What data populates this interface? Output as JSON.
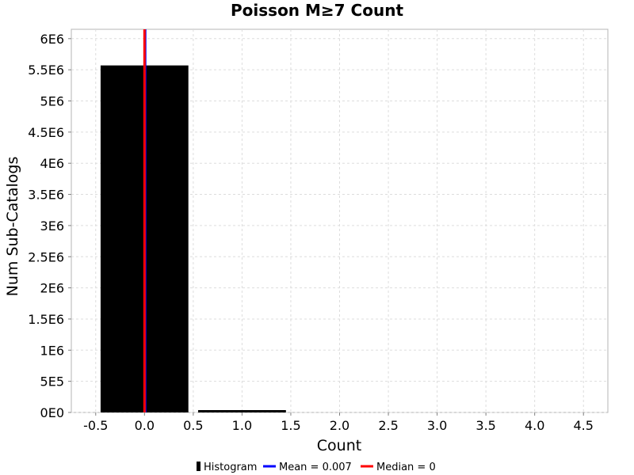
{
  "chart_data": {
    "type": "bar",
    "title": "Poisson M≥7 Count",
    "xlabel": "Count",
    "ylabel": "Num Sub-Catalogs",
    "xlim": [
      -0.75,
      4.75
    ],
    "ylim": [
      0,
      6150000
    ],
    "x_ticks": [
      -0.5,
      0.0,
      0.5,
      1.0,
      1.5,
      2.0,
      2.5,
      3.0,
      3.5,
      4.0,
      4.5
    ],
    "x_tick_labels": [
      "-0.5",
      "0.0",
      "0.5",
      "1.0",
      "1.5",
      "2.0",
      "2.5",
      "3.0",
      "3.5",
      "4.0",
      "4.5"
    ],
    "y_ticks": [
      0,
      500000,
      1000000,
      1500000,
      2000000,
      2500000,
      3000000,
      3500000,
      4000000,
      4500000,
      5000000,
      5500000,
      6000000
    ],
    "y_tick_labels": [
      "0E0",
      "5E5",
      "1E6",
      "1.5E6",
      "2E6",
      "2.5E6",
      "3E6",
      "3.5E6",
      "4E6",
      "4.5E6",
      "5E6",
      "5.5E6",
      "6E6"
    ],
    "bin_width": 0.9,
    "series": [
      {
        "name": "Histogram",
        "color": "#000000",
        "x": [
          0,
          1
        ],
        "values": [
          5570000,
          38000
        ]
      }
    ],
    "lines": [
      {
        "name": "Mean = 0.007",
        "x": 0.007,
        "color": "#0000ff"
      },
      {
        "name": "Median = 0",
        "x": 0,
        "color": "#ff0000"
      }
    ],
    "grid": true,
    "legend_position": "bottom"
  }
}
